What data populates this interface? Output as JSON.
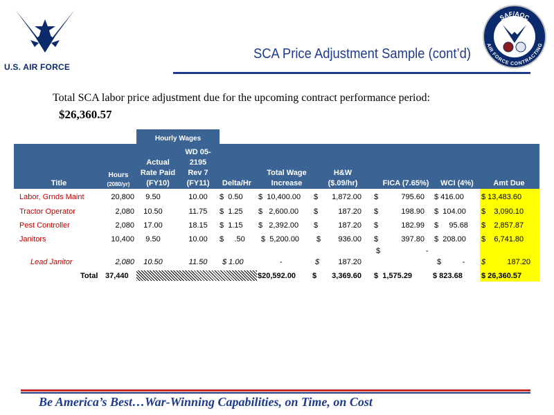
{
  "brand": "U.S. AIR FORCE",
  "seal": {
    "top_text": "SAF/AQC",
    "bottom_text": "AIR FORCE CONTRACTING"
  },
  "title": "SCA Price Adjustment Sample (cont’d)",
  "intro": "Total SCA labor price adjustment due for the upcoming contract performance period:",
  "total_due": "$26,360.57",
  "table": {
    "group_header": "Hourly Wages",
    "headers": {
      "title": "Title",
      "hours": [
        "Hours",
        "(2080/yr)"
      ],
      "actual": [
        "Actual",
        "Rate Paid",
        "(FY10)"
      ],
      "wd": [
        "WD 05-",
        "2195",
        "Rev 7",
        "(FY11)"
      ],
      "delta": "Delta/Hr",
      "twi": [
        "Total Wage",
        "Increase"
      ],
      "hw": [
        "H&W",
        "($.09/hr)"
      ],
      "fica": "FICA (7.65%)",
      "wci": "WCI (4%)",
      "amt": "Amt Due"
    },
    "rows": [
      {
        "title": "Labor, Grnds Maint",
        "hours": "20,800",
        "actual": "9.50",
        "wd": "10.00",
        "delta": "$  0.50",
        "twi": "$  10,400.00",
        "hw_sym": "$",
        "hw": "1,872.00",
        "fica_sym": "$",
        "fica": "795.60",
        "wci": "$ 416.00",
        "amt": "$ 13,483.60"
      },
      {
        "title": "Tractor Operator",
        "hours": "2,080",
        "actual": "10.50",
        "wd": "11.75",
        "delta": "$  1.25",
        "twi": "$   2,600.00",
        "hw_sym": "$",
        "hw": "187.20",
        "fica_sym": "$",
        "fica": "198.90",
        "wci": "$  104.00",
        "amt": "$    3,090.10"
      },
      {
        "title": "Pest Controller",
        "hours": "2,080",
        "actual": "17.00",
        "wd": "18.15",
        "delta": "$  1.15",
        "twi": "$   2,392.00",
        "hw_sym": "$",
        "hw": "187.20",
        "fica_sym": "$",
        "fica": "182.99",
        "wci": "$     95.68",
        "amt": "$    2,857.87"
      },
      {
        "title": "Janitors",
        "hours": "10,400",
        "actual": "9.50",
        "wd": "10.00",
        "delta": "$     .50",
        "twi": "$  5,200.00",
        "hw_sym": "$",
        "hw": "936.00",
        "fica_sym": "$",
        "fica": "397.80",
        "wci": "$  208.00",
        "amt": "$    6,741.80"
      }
    ],
    "lead": {
      "title": "Lead Janitor",
      "hours": "2,080",
      "actual": "10.50",
      "wd": "11.50",
      "delta": "$ 1.00",
      "twi": "-",
      "hw_sym": "$",
      "hw": "187.20",
      "fica_sym": "$",
      "fica_dot": "-",
      "wci": "$          -",
      "amt_sym": "$",
      "amt": "187.20"
    },
    "totals": {
      "label": "Total",
      "hours": "37,440",
      "twi": "$20,592.00",
      "hw_sym": "$",
      "hw": "3,369.60",
      "fica": "$  1,575.29",
      "wci": "$ 823.68",
      "amt": "$ 26,360.57"
    }
  },
  "motto": "Be America’s Best…War-Winning Capabilities, on Time, on Cost",
  "colors": {
    "header_blue": "#3b6494",
    "red_text": "#c00000",
    "highlight": "#ffff00",
    "title_blue": "#1f3a8a"
  }
}
